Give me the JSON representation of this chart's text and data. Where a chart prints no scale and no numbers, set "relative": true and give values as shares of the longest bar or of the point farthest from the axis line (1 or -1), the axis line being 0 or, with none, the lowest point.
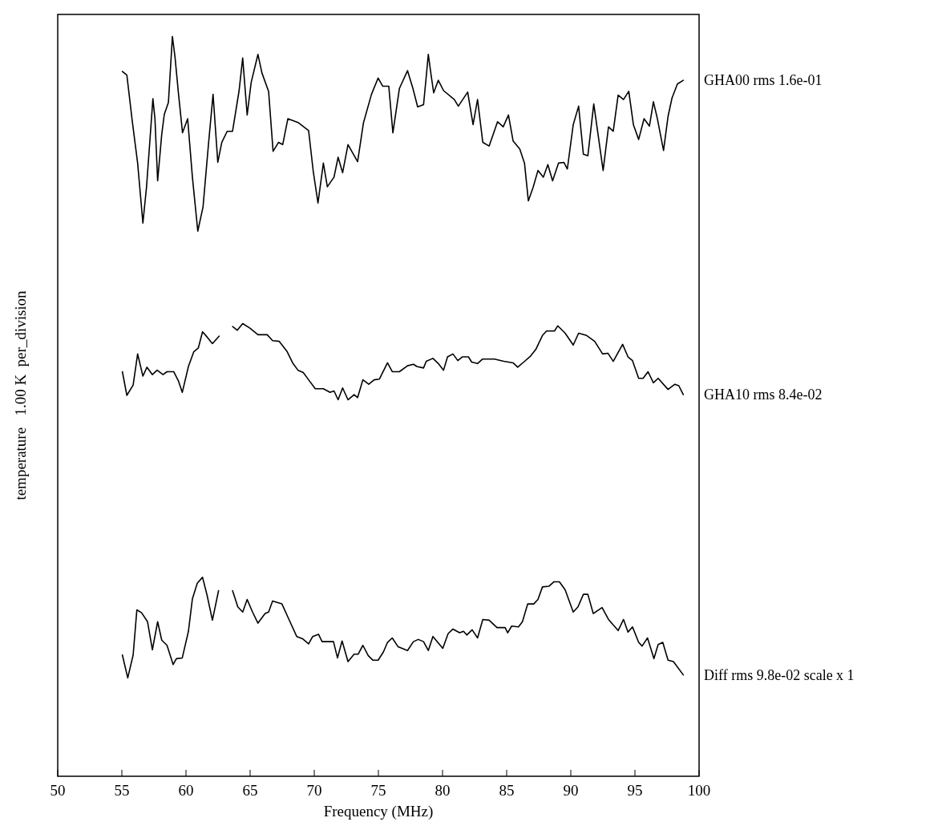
{
  "chart_data": {
    "type": "line",
    "xlabel": "Frequency (MHz)",
    "ylabel": "temperature   1.00 K  per_division",
    "relative": true,
    "xlim": [
      50,
      100
    ],
    "xticks": [
      50,
      55,
      60,
      65,
      70,
      75,
      80,
      85,
      90,
      95,
      100
    ],
    "series": [
      {
        "name": "GHA00 rms 1.6e-01",
        "color": "#000000",
        "x": [
          55.04,
          55.39,
          55.81,
          56.23,
          56.64,
          56.92,
          57.13,
          57.42,
          57.58,
          57.79,
          58.11,
          58.31,
          58.63,
          58.94,
          59.14,
          59.42,
          59.73,
          60.13,
          60.5,
          60.92,
          61.33,
          61.75,
          62.11,
          62.48,
          62.79,
          63.21,
          63.63,
          64.14,
          64.42,
          64.77,
          65.08,
          65.61,
          65.92,
          66.44,
          66.79,
          67.21,
          67.54,
          67.94,
          68.73,
          69.56,
          69.92,
          70.29,
          70.71,
          71.02,
          71.54,
          71.86,
          72.21,
          72.63,
          73.38,
          73.83,
          74.46,
          74.98,
          75.33,
          75.81,
          76.13,
          76.64,
          77.27,
          77.69,
          78.06,
          78.52,
          78.73,
          78.89,
          79.11,
          79.31,
          79.67,
          80.08,
          80.92,
          81.23,
          81.96,
          82.38,
          82.73,
          83.14,
          83.63,
          84.29,
          84.73,
          85.14,
          85.5,
          86.02,
          86.39,
          86.69,
          87.06,
          87.44,
          87.86,
          88.21,
          88.58,
          89.04,
          89.46,
          89.73,
          90.19,
          90.61,
          90.98,
          91.33,
          91.79,
          92.52,
          92.94,
          93.31,
          93.69,
          94.11,
          94.52,
          94.88,
          95.29,
          95.71,
          96.13,
          96.44,
          96.75,
          97.23,
          97.58,
          97.89,
          98.31,
          98.77
        ],
        "values": [
          0.953,
          0.948,
          0.886,
          0.829,
          0.748,
          0.796,
          0.846,
          0.916,
          0.889,
          0.805,
          0.868,
          0.895,
          0.911,
          1,
          0.973,
          0.922,
          0.87,
          0.889,
          0.81,
          0.737,
          0.77,
          0.854,
          0.922,
          0.83,
          0.857,
          0.872,
          0.872,
          0.927,
          0.971,
          0.894,
          0.938,
          0.976,
          0.951,
          0.926,
          0.845,
          0.857,
          0.854,
          0.889,
          0.884,
          0.873,
          0.818,
          0.775,
          0.829,
          0.797,
          0.81,
          0.837,
          0.816,
          0.854,
          0.831,
          0.883,
          0.922,
          0.944,
          0.933,
          0.933,
          0.87,
          0.93,
          0.954,
          0.93,
          0.905,
          0.908,
          0.946,
          0.976,
          0.948,
          0.924,
          0.941,
          0.927,
          0.915,
          0.906,
          0.925,
          0.881,
          0.915,
          0.857,
          0.852,
          0.885,
          0.878,
          0.894,
          0.859,
          0.848,
          0.829,
          0.778,
          0.796,
          0.819,
          0.81,
          0.827,
          0.805,
          0.829,
          0.83,
          0.821,
          0.881,
          0.906,
          0.841,
          0.839,
          0.909,
          0.819,
          0.878,
          0.872,
          0.921,
          0.915,
          0.926,
          0.881,
          0.861,
          0.889,
          0.879,
          0.912,
          0.889,
          0.846,
          0.892,
          0.917,
          0.936,
          0.941
        ]
      },
      {
        "name": "GHA10 rms 8.4e-02",
        "color": "#000000",
        "x": [
          55.04,
          55.39,
          55.88,
          56.23,
          56.64,
          56.96,
          57.38,
          57.75,
          58.21,
          58.52,
          59.04,
          59.42,
          59.71,
          60.19,
          60.61,
          60.96,
          61.29,
          61.64,
          62.06,
          62.58,
          63.0,
          63.63,
          64,
          64.42,
          64.98,
          65.61,
          66.33,
          66.75,
          67.27,
          67.89,
          68.31,
          68.73,
          69.14,
          69.56,
          70.08,
          70.71,
          71.23,
          71.54,
          71.86,
          72.21,
          72.63,
          73.11,
          73.38,
          73.79,
          74.25,
          74.67,
          75.08,
          75.71,
          76.08,
          76.64,
          77.27,
          77.73,
          78,
          78.52,
          78.73,
          79.25,
          79.67,
          80.08,
          80.39,
          80.81,
          81.19,
          81.54,
          82.02,
          82.27,
          82.73,
          83.11,
          84.04,
          84.77,
          85.5,
          85.86,
          86.33,
          86.86,
          87.27,
          87.79,
          88.11,
          88.73,
          88.98,
          89.56,
          90.19,
          90.61,
          91.23,
          91.86,
          92.48,
          92.89,
          93.31,
          94.04,
          94.46,
          94.81,
          95.29,
          95.64,
          96.02,
          96.44,
          96.81,
          97.58,
          98.11,
          98.42,
          98.77
        ],
        "values": [
          0.547,
          0.515,
          0.529,
          0.571,
          0.541,
          0.553,
          0.543,
          0.549,
          0.543,
          0.547,
          0.547,
          0.534,
          0.519,
          0.554,
          0.574,
          0.579,
          0.601,
          0.594,
          0.585,
          0.595,
          null,
          0.608,
          0.603,
          0.612,
          0.606,
          0.597,
          0.597,
          0.589,
          0.588,
          0.574,
          0.559,
          0.549,
          0.546,
          0.536,
          0.524,
          0.524,
          0.519,
          0.521,
          0.509,
          0.525,
          0.509,
          0.516,
          0.512,
          0.536,
          0.53,
          0.536,
          0.537,
          0.559,
          0.547,
          0.547,
          0.555,
          0.557,
          0.554,
          0.552,
          0.561,
          0.565,
          0.558,
          0.549,
          0.567,
          0.571,
          0.562,
          0.567,
          0.567,
          0.56,
          0.558,
          0.564,
          0.564,
          0.561,
          0.559,
          0.553,
          0.56,
          0.568,
          0.577,
          0.596,
          0.602,
          0.602,
          0.609,
          0.599,
          0.583,
          0.599,
          0.596,
          0.588,
          0.571,
          0.572,
          0.561,
          0.584,
          0.567,
          0.562,
          0.538,
          0.538,
          0.547,
          0.532,
          0.538,
          0.523,
          0.53,
          0.528,
          0.516
        ]
      },
      {
        "name": "Diff  rms 9.8e-02 scale x 1",
        "color": "#000000",
        "x": [
          55.04,
          55.46,
          55.88,
          56.17,
          56.54,
          57,
          57.38,
          57.79,
          58.11,
          58.52,
          59,
          59.25,
          59.71,
          60.19,
          60.5,
          60.88,
          61.29,
          61.64,
          62.06,
          62.54,
          63.0,
          63.63,
          64.04,
          64.42,
          64.77,
          65.19,
          65.61,
          66.17,
          66.44,
          66.75,
          67.48,
          68,
          68.63,
          69.08,
          69.56,
          69.88,
          70.33,
          70.61,
          71.5,
          71.81,
          72.17,
          72.63,
          73.11,
          73.42,
          73.79,
          74.21,
          74.56,
          74.98,
          75.39,
          75.71,
          76.08,
          76.54,
          77.27,
          77.73,
          78.11,
          78.52,
          78.89,
          79.25,
          80.02,
          80.44,
          80.81,
          81.33,
          81.64,
          81.89,
          82.31,
          82.73,
          83.14,
          83.63,
          84.25,
          84.88,
          85.08,
          85.39,
          85.92,
          86.23,
          86.64,
          87.11,
          87.44,
          87.79,
          88.31,
          88.69,
          89.11,
          89.56,
          90.19,
          90.56,
          90.98,
          91.33,
          91.75,
          92.44,
          92.94,
          93.69,
          94.11,
          94.46,
          94.81,
          95.29,
          95.56,
          95.98,
          96.48,
          96.81,
          97.17,
          97.58,
          98,
          98.77
        ],
        "values": [
          0.164,
          0.133,
          0.164,
          0.225,
          0.221,
          0.209,
          0.171,
          0.209,
          0.184,
          0.177,
          0.151,
          0.159,
          0.16,
          0.196,
          0.24,
          0.261,
          0.269,
          0.245,
          0.211,
          0.251,
          null,
          0.251,
          0.229,
          0.222,
          0.239,
          0.222,
          0.207,
          0.22,
          0.222,
          0.237,
          0.233,
          0.213,
          0.189,
          0.186,
          0.179,
          0.189,
          0.192,
          0.182,
          0.182,
          0.16,
          0.183,
          0.155,
          0.165,
          0.165,
          0.177,
          0.163,
          0.157,
          0.157,
          0.168,
          0.181,
          0.187,
          0.175,
          0.17,
          0.182,
          0.185,
          0.182,
          0.17,
          0.189,
          0.173,
          0.193,
          0.199,
          0.194,
          0.196,
          0.191,
          0.198,
          0.187,
          0.212,
          0.211,
          0.201,
          0.201,
          0.194,
          0.203,
          0.202,
          0.209,
          0.233,
          0.233,
          0.239,
          0.256,
          0.257,
          0.263,
          0.263,
          0.252,
          0.222,
          0.229,
          0.246,
          0.246,
          0.22,
          0.228,
          0.212,
          0.197,
          0.212,
          0.195,
          0.202,
          0.181,
          0.176,
          0.187,
          0.159,
          0.178,
          0.181,
          0.157,
          0.155,
          0.137
        ]
      }
    ]
  }
}
